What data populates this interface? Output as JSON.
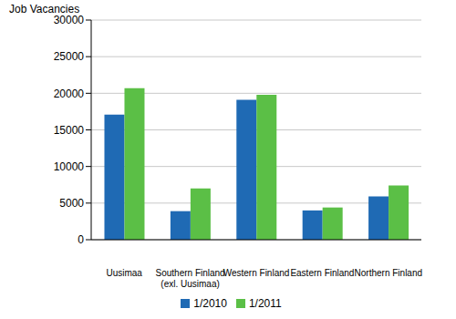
{
  "chart_data": {
    "type": "bar",
    "y_label": "Job Vacancies",
    "categories": [
      "Uusimaa",
      "Southern Finland (exl. Uusimaa)",
      "Western Finland",
      "Eastern Finland",
      "Northern Finland"
    ],
    "series": [
      {
        "name": "1/2010",
        "color": "#1f6ab4",
        "values": [
          17100,
          3900,
          19100,
          4000,
          5900
        ]
      },
      {
        "name": "1/2011",
        "color": "#5bbf46",
        "values": [
          20700,
          7000,
          19800,
          4400,
          7400
        ]
      }
    ],
    "ylim": [
      0,
      30000
    ],
    "yticks": [
      0,
      5000,
      10000,
      15000,
      20000,
      25000,
      30000
    ],
    "grid": true,
    "legend": "bottom"
  }
}
